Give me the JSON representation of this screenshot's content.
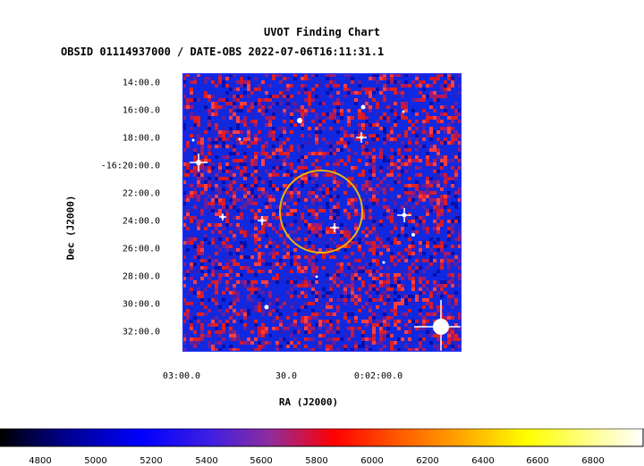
{
  "chart_data": {
    "type": "heatmap",
    "title": "UVOT Finding Chart",
    "subtitle": "OBSID 01114937000 / DATE-OBS 2022-07-06T16:11:31.1",
    "xlabel": "RA (J2000)",
    "ylabel": "Dec (J2000)",
    "x_ticks": [
      "03:00.0",
      "30.0",
      "0:02:00.0"
    ],
    "y_ticks": [
      "14:00.0",
      "16:00.0",
      "18:00.0",
      "-16:20:00.0",
      "22:00.0",
      "24:00.0",
      "26:00.0",
      "28:00.0",
      "30:00.0",
      "32:00.0"
    ],
    "colorbar": {
      "range": [
        4600,
        6950
      ],
      "ticks": [
        4800,
        5000,
        5200,
        5400,
        5600,
        5800,
        6000,
        6200,
        6400,
        6600,
        6800
      ],
      "tick_labels": [
        "4800",
        "5000",
        "5200",
        "5400",
        "5600",
        "5800",
        "6000",
        "6200",
        "6400",
        "6600",
        "6800"
      ],
      "colormap": [
        "#000000",
        "#0000c8",
        "#0000ff",
        "#5a28d0",
        "#a03098",
        "#ff0000",
        "#ff6000",
        "#ffb000",
        "#ffff00",
        "#ffffff"
      ]
    },
    "colors": {
      "frame": "#2030ff",
      "circle": "#f0b400",
      "background_blue": "#1028e0",
      "background_red": "#d01830"
    }
  }
}
